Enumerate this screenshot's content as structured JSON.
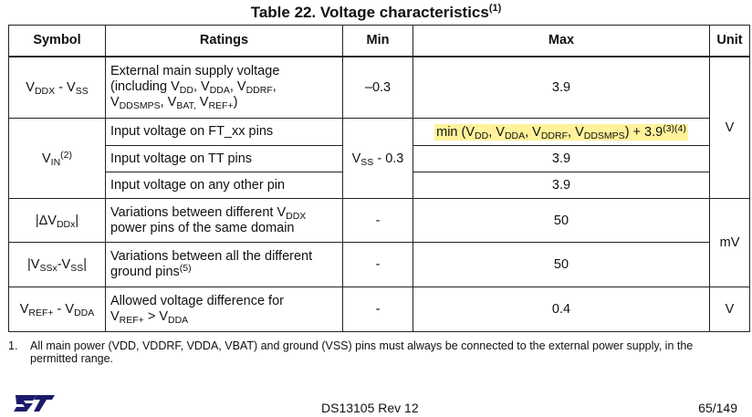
{
  "title": {
    "text": "Table 22. Voltage characteristics",
    "ref": "(1)"
  },
  "headers": {
    "symbol": "Symbol",
    "ratings": "Ratings",
    "min": "Min",
    "max": "Max",
    "unit": "Unit"
  },
  "rows": {
    "vddx": {
      "symbol": {
        "a": "V",
        "a_sub": "DDX",
        "mid": " - V",
        "b_sub": "SS"
      },
      "rating": {
        "l1": "External main supply voltage",
        "l2a": "(including V",
        "l2b": "DD",
        "l2c": ", V",
        "l2d": "DDA",
        "l2e": ", V",
        "l2f": "DDRF",
        "l2g": ",",
        "l3a": "V",
        "l3b": "DDSMPS",
        "l3c": ", V",
        "l3d": "BAT,",
        "l3e": " V",
        "l3f": "REF+",
        "l3g": ")"
      },
      "min": "–0.3",
      "max": "3.9"
    },
    "vin": {
      "symbol": {
        "a": "V",
        "a_sub": "IN",
        "ref": "(2)"
      },
      "min": {
        "a": "V",
        "sub": "SS",
        "b": " - 0.3"
      },
      "ft": {
        "rating": "Input voltage on FT_xx pins",
        "max": {
          "a": "min (V",
          "b": "DD",
          "c": ", V",
          "d": "DDA",
          "e": ", V",
          "f": "DDRF",
          "g": ", V",
          "h": "DDSMPS",
          "i": ") + 3.9",
          "ref": "(3)(4)"
        }
      },
      "tt": {
        "rating": "Input voltage on TT pins",
        "max": "3.9"
      },
      "other": {
        "rating": "Input voltage on any other pin",
        "max": "3.9"
      }
    },
    "dvddx": {
      "symbol": {
        "a": "|ΔV",
        "sub": "DDx",
        "b": "|"
      },
      "rating": {
        "l1a": "Variations between different V",
        "l1b": "DDX",
        "l2": "power pins of the same domain"
      },
      "min": "-",
      "max": "50"
    },
    "vssx": {
      "symbol": {
        "a": "|V",
        "sub": "SSx",
        "b": "-V",
        "sub2": "SS",
        "c": "|"
      },
      "rating": {
        "l1": "Variations between all the different",
        "l2": "ground pins",
        "ref": "(5)"
      },
      "min": "-",
      "max": "50"
    },
    "vref": {
      "symbol": {
        "a": "V",
        "sub": "REF+",
        "b": " - V",
        "sub2": "DDA"
      },
      "rating": {
        "l1": "Allowed voltage difference for",
        "l2a": "V",
        "l2b": "REF+",
        "l2c": " > V",
        "l2d": "DDA"
      },
      "min": "-",
      "max": "0.4"
    }
  },
  "units": {
    "v": "V",
    "mv": "mV",
    "v2": "V"
  },
  "footnote": {
    "num": "1.",
    "text": "All main power (VDD, VDDRF, VDDA, VBAT) and ground (VSS) pins must always be connected to the external power supply, in the permitted range."
  },
  "footer": {
    "logo_text": "ST",
    "doc_id": "DS13105 Rev 12",
    "page": "65/149"
  },
  "colors": {
    "highlight": "#fff29a",
    "logo": "#1b1b6b"
  }
}
